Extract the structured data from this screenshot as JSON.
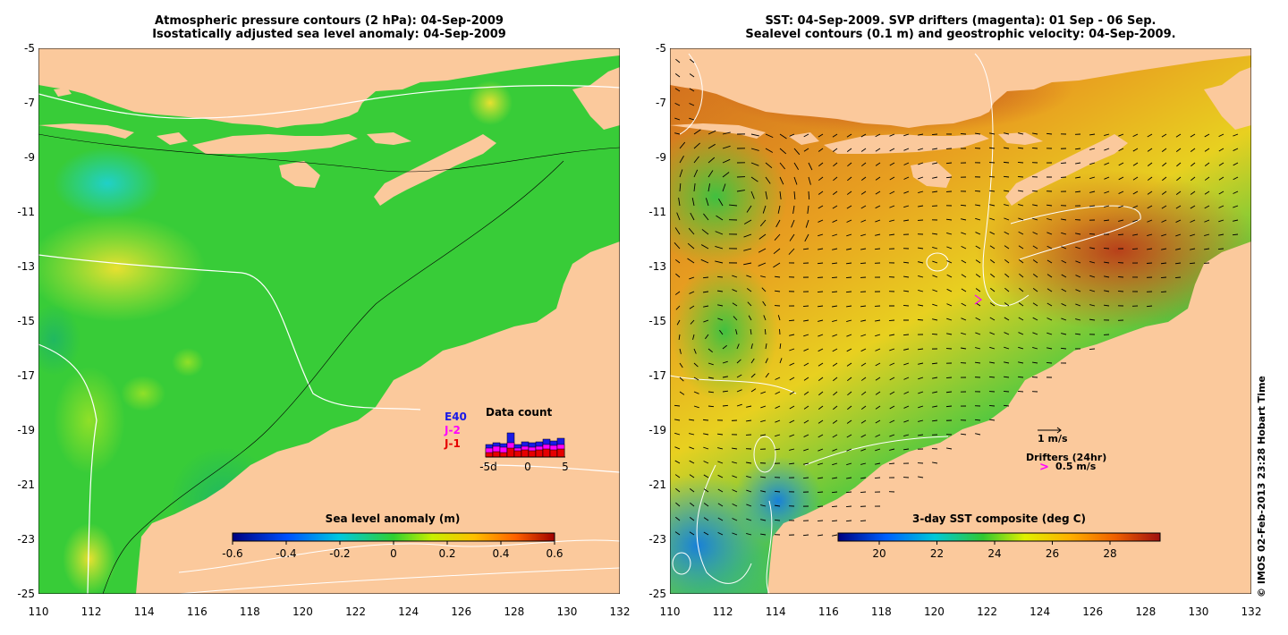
{
  "left_panel": {
    "title_line1": "Atmospheric pressure contours (2 hPa): 04-Sep-2009",
    "title_line2": "Isostatically adjusted sea level anomaly: 04-Sep-2009",
    "colorbar_label": "Sea level anomaly (m)",
    "colorbar_ticks": [
      "-0.6",
      "-0.4",
      "-0.2",
      "0",
      "0.2",
      "0.4",
      "0.6"
    ],
    "data_count": {
      "title": "Data count",
      "legend": [
        {
          "label": "E40",
          "color": "#1a1ae6"
        },
        {
          "label": "J-2",
          "color": "#ff00ff"
        },
        {
          "label": "J-1",
          "color": "#e60000"
        }
      ],
      "x_ticks": [
        "-5d",
        "0",
        "5"
      ]
    }
  },
  "right_panel": {
    "title_line1": "SST: 04-Sep-2009. SVP drifters (magenta): 01 Sep - 06 Sep.",
    "title_line2": "Sealevel contours (0.1 m) and geostrophic velocity: 04-Sep-2009.",
    "colorbar_label": "3-day SST composite (deg C)",
    "colorbar_ticks": [
      "20",
      "22",
      "24",
      "26",
      "28"
    ],
    "scale_label": "1 m/s",
    "drifters_label": "Drifters (24hr)",
    "drifter_speed_label": "0.5 m/s",
    "drifter_symbol": ">"
  },
  "axes": {
    "lat_ticks": [
      "-5",
      "-7",
      "-9",
      "-11",
      "-13",
      "-15",
      "-17",
      "-19",
      "-21",
      "-23",
      "-25"
    ],
    "lon_ticks": [
      "110",
      "112",
      "114",
      "116",
      "118",
      "120",
      "122",
      "124",
      "126",
      "128",
      "130",
      "132"
    ]
  },
  "credit": "© IMOS 02-Feb-2013 23:28 Hobart Time",
  "colors": {
    "land": "#fbc99c",
    "sla_ocean": "#38cc38",
    "sst_warm": "#c8501c"
  }
}
